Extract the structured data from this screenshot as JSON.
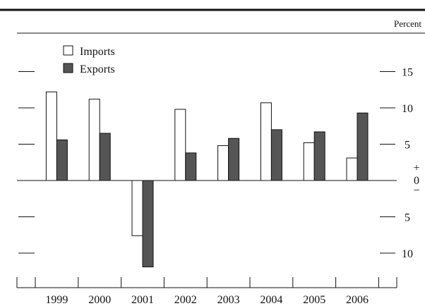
{
  "chart_data": {
    "type": "bar",
    "unit_label": "Percent",
    "categories": [
      "1999",
      "2000",
      "2001",
      "2002",
      "2003",
      "2004",
      "2005",
      "2006"
    ],
    "series": [
      {
        "name": "Imports",
        "color": "#ffffff",
        "values": [
          12.2,
          11.2,
          -7.6,
          9.8,
          4.8,
          10.7,
          5.2,
          3.1
        ]
      },
      {
        "name": "Exports",
        "color": "#555555",
        "values": [
          5.6,
          6.5,
          -11.9,
          3.8,
          5.8,
          7.0,
          6.7,
          9.3
        ]
      }
    ],
    "ylim": [
      -13,
      18
    ],
    "y_ticks": [
      -10,
      -5,
      0,
      5,
      10,
      15
    ],
    "y_tick_labels": [
      "10",
      "5",
      "0",
      "5",
      "10",
      "15"
    ],
    "zero_signs": {
      "plus": "+",
      "minus": "−"
    },
    "legend_placement": "top-left",
    "grid": false
  }
}
